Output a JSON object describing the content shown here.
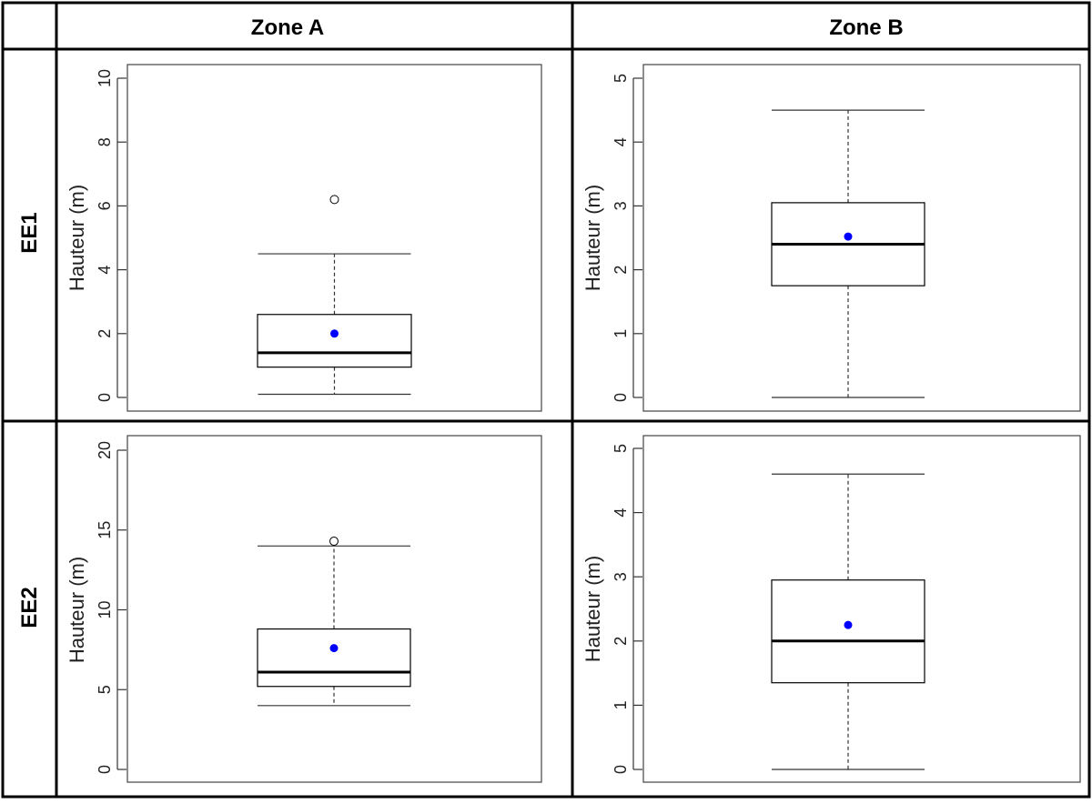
{
  "table": {
    "col_headers": [
      "Zone A",
      "Zone B"
    ],
    "row_headers": [
      "EE1",
      "EE2"
    ]
  },
  "colors": {
    "grid_line": "#000000",
    "mean_point": "#0000ff",
    "box_stroke": "#000000",
    "outlier": "#000000"
  },
  "chart_data": [
    {
      "type": "boxplot",
      "row": "EE1",
      "zone": "Zone A",
      "ylabel": "Hauteur (m)",
      "ylim": [
        0,
        10
      ],
      "yticks": [
        0,
        2,
        4,
        6,
        8,
        10
      ],
      "whisker_low": 0.1,
      "q1": 0.95,
      "median": 1.4,
      "q3": 2.6,
      "whisker_high": 4.5,
      "mean": 2.0,
      "outliers": [
        6.2
      ]
    },
    {
      "type": "boxplot",
      "row": "EE1",
      "zone": "Zone B",
      "ylabel": "Hauteur (m)",
      "ylim": [
        0,
        5
      ],
      "yticks": [
        0,
        1,
        2,
        3,
        4,
        5
      ],
      "whisker_low": 0,
      "q1": 1.75,
      "median": 2.4,
      "q3": 3.05,
      "whisker_high": 4.5,
      "mean": 2.52,
      "outliers": []
    },
    {
      "type": "boxplot",
      "row": "EE2",
      "zone": "Zone A",
      "ylabel": "Hauteur (m)",
      "ylim": [
        0,
        20
      ],
      "yticks": [
        0,
        5,
        10,
        15,
        20
      ],
      "whisker_low": 4,
      "q1": 5.2,
      "median": 6.1,
      "q3": 8.8,
      "whisker_high": 14,
      "mean": 7.6,
      "outliers": [
        14.3
      ]
    },
    {
      "type": "boxplot",
      "row": "EE2",
      "zone": "Zone B",
      "ylabel": "Hauteur (m)",
      "ylim": [
        0,
        5
      ],
      "yticks": [
        0,
        1,
        2,
        3,
        4,
        5
      ],
      "whisker_low": 0,
      "q1": 1.35,
      "median": 2.0,
      "q3": 2.95,
      "whisker_high": 4.6,
      "mean": 2.25,
      "outliers": []
    }
  ]
}
